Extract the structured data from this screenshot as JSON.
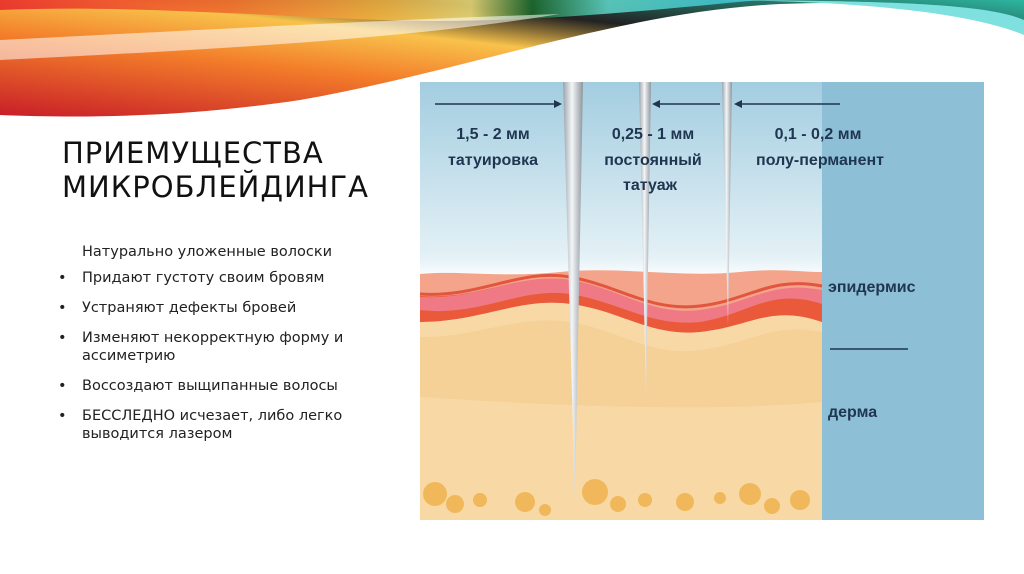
{
  "slide": {
    "title_lines": [
      "ПРИЕМУЩЕСТВА",
      "МИКРОБЛЕЙДИНГА"
    ],
    "intro": "Натурально уложенные волоски",
    "bullets": [
      "Придают густоту своим бровям",
      "Устраняют дефекты бровей",
      "Изменяют некорректную форму и ассиметрию",
      "Воссоздают выщипанные волосы",
      "БЕССЛЕДНО исчезает, либо легко выводится лазером"
    ],
    "bullet_glyph": "•"
  },
  "figure": {
    "needles": [
      {
        "depth": "1,5 - 2 мм",
        "label_lines": [
          "татуировка"
        ]
      },
      {
        "depth": "0,25 - 1 мм",
        "label_lines": [
          "постоянный",
          "татуаж"
        ]
      },
      {
        "depth": "0,1 - 0,2 мм",
        "label_lines": [
          "полу-перманент"
        ]
      }
    ],
    "layers": {
      "epidermis": "эпидермис",
      "dermis": "дерма"
    },
    "colors": {
      "panel": "#8dbfd6",
      "sky": "#a3cde0",
      "epidermis_light": "#f3a48a",
      "epidermis_dark": "#ef7a6e",
      "basal": "#ea5a3a",
      "dermis": "#f8d9a6",
      "fat": "#f0b85a",
      "text": "#1f3550"
    }
  }
}
